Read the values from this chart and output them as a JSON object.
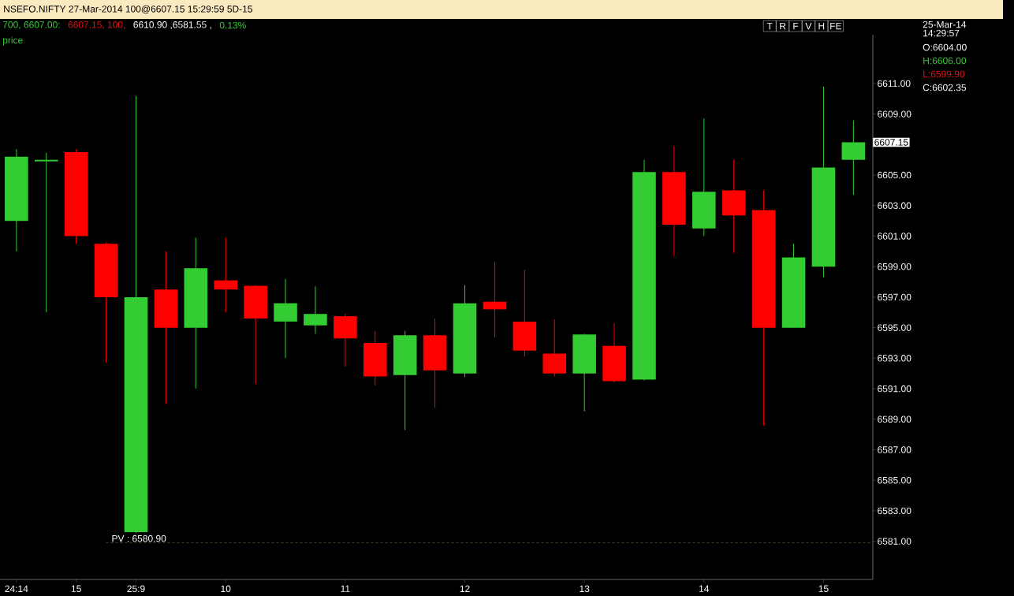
{
  "chart_data": {
    "type": "candlestick",
    "title": "NSEFO.NIFTY 27-Mar-2014 100@6607.15 15:29:59 5D-15",
    "categories": [
      "24:14",
      null,
      "15",
      null,
      "25:9",
      null,
      null,
      "10",
      null,
      null,
      null,
      "11",
      null,
      null,
      null,
      "12",
      null,
      null,
      null,
      "13",
      null,
      null,
      null,
      "14",
      null,
      null,
      null,
      "15",
      null
    ],
    "ohlc": [
      [
        6602.0,
        6606.7,
        6600.0,
        6606.2
      ],
      [
        6605.9,
        6606.45,
        6596.0,
        6606.0
      ],
      [
        6606.5,
        6606.7,
        6600.5,
        6601.0
      ],
      [
        6600.5,
        6600.6,
        6592.7,
        6597.0
      ],
      [
        6581.6,
        6610.2,
        6581.55,
        6597.0
      ],
      [
        6597.5,
        6600.0,
        6590.0,
        6595.0
      ],
      [
        6595.0,
        6600.9,
        6591.0,
        6598.9
      ],
      [
        6598.1,
        6600.9,
        6596.0,
        6597.5
      ],
      [
        6597.75,
        6597.8,
        6591.3,
        6595.6
      ],
      [
        6595.4,
        6598.2,
        6593.0,
        6596.6
      ],
      [
        6595.15,
        6597.7,
        6594.6,
        6595.9
      ],
      [
        6595.75,
        6595.9,
        6592.45,
        6594.3
      ],
      [
        6594.0,
        6594.8,
        6591.2,
        6591.8
      ],
      [
        6591.9,
        6594.8,
        6588.3,
        6594.5
      ],
      [
        6594.5,
        6595.6,
        6589.75,
        6592.2
      ],
      [
        6592.0,
        6597.8,
        6591.75,
        6596.6
      ],
      [
        6596.7,
        6599.3,
        6594.35,
        6596.2
      ],
      [
        6595.4,
        6598.8,
        6593.1,
        6593.5
      ],
      [
        6593.3,
        6595.55,
        6591.8,
        6592.0
      ],
      [
        6592.0,
        6594.6,
        6589.5,
        6594.55
      ],
      [
        6593.8,
        6595.3,
        6591.4,
        6591.5
      ],
      [
        6591.6,
        6606.0,
        6591.55,
        6605.2
      ],
      [
        6605.2,
        6606.9,
        6599.7,
        6601.75
      ],
      [
        6601.5,
        6608.7,
        6601.0,
        6603.9
      ],
      [
        6604.0,
        6606.0,
        6599.9,
        6602.35
      ],
      [
        6602.7,
        6604.0,
        6588.6,
        6595.0
      ],
      [
        6595.0,
        6600.5,
        6595.0,
        6599.6
      ],
      [
        6599.0,
        6610.8,
        6598.3,
        6605.5
      ],
      [
        6606.0,
        6608.6,
        6603.7,
        6607.15
      ]
    ],
    "colors": [
      "#33cc33",
      "#33cc33",
      "#ff0000",
      "#ff0000",
      "#33cc33",
      "#ff0000",
      "#33cc33",
      "#ff0000",
      "#ff0000",
      "#33cc33",
      "#33cc33",
      "#ff0000",
      "#ff0000",
      "#33cc33",
      "#ff0000",
      "#33cc33",
      "#ff0000",
      "#ff0000",
      "#ff0000",
      "#33cc33",
      "#ff0000",
      "#33cc33",
      "#ff0000",
      "#33cc33",
      "#ff0000",
      "#ff0000",
      "#33cc33",
      "#33cc33",
      "#33cc33"
    ],
    "ylim": [
      6578.5,
      6614.2
    ],
    "yticks": [
      {
        "value": 6581,
        "label": "6581.00"
      },
      {
        "value": 6583,
        "label": "6583.00"
      },
      {
        "value": 6585,
        "label": "6585.00"
      },
      {
        "value": 6587,
        "label": "6587.00"
      },
      {
        "value": 6589,
        "label": "6589.00"
      },
      {
        "value": 6591,
        "label": "6591.00"
      },
      {
        "value": 6593,
        "label": "6593.00"
      },
      {
        "value": 6595,
        "label": "6595.00"
      },
      {
        "value": 6597,
        "label": "6597.00"
      },
      {
        "value": 6599,
        "label": "6599.00"
      },
      {
        "value": 6601,
        "label": "6601.00"
      },
      {
        "value": 6603,
        "label": "6603.00"
      },
      {
        "value": 6605,
        "label": "6605.00"
      },
      {
        "value": 6609,
        "label": "6609.00"
      },
      {
        "value": 6611,
        "label": "6611.00"
      }
    ],
    "ref_lines": [
      {
        "axis": "y",
        "value": 6580.9,
        "label": "PV : 6580.90",
        "color": "#c89a5a",
        "line_style": "dashed"
      }
    ],
    "annotations": [
      "700, 6607.00:",
      "6607.15, 100,",
      "6610.90 ,6581.55 ,",
      "0.13%",
      "price",
      "T",
      "R",
      "F",
      "V",
      "H",
      "FE",
      "25-Mar-14",
      "14:29:57",
      "O:6604.00",
      "H:6606.00",
      "L:6599.90",
      "C:6602.35",
      "6607.15"
    ]
  }
}
